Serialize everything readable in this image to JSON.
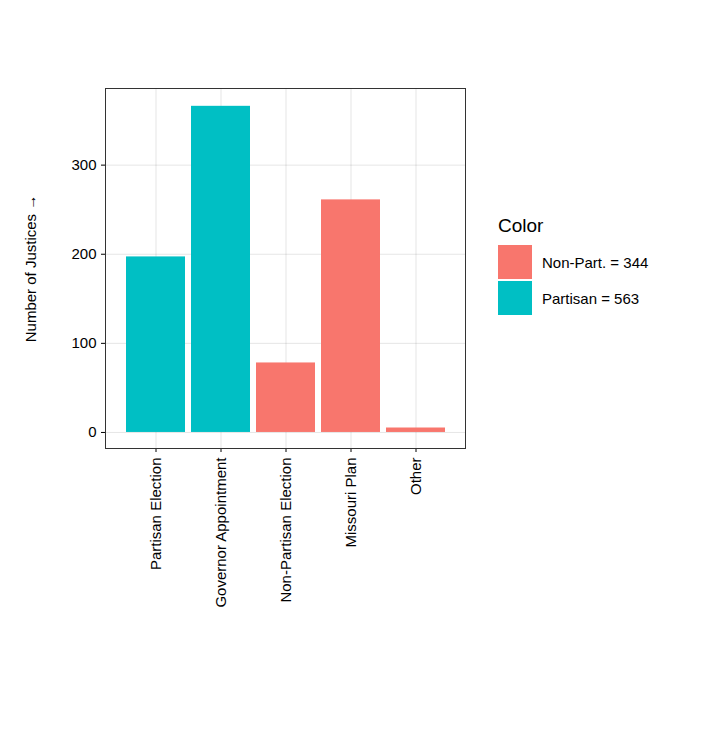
{
  "chart_data": {
    "type": "bar",
    "categories": [
      "Partisan Election",
      "Governor Appointment",
      "Non-Partisan Election",
      "Missouri Plan",
      "Other"
    ],
    "series": [
      {
        "name": "Non-Part. = 344",
        "color": "#F8766D",
        "values": [
          null,
          null,
          78,
          261,
          5
        ]
      },
      {
        "name": "Partisan = 563",
        "color": "#00BFC4",
        "values": [
          197,
          366,
          null,
          null,
          null
        ]
      }
    ],
    "y_label": "Number of Justices",
    "legend_title": "Color",
    "legend": "right",
    "ylim": [
      -18,
      386
    ],
    "yticks": [
      0,
      100,
      200,
      300
    ],
    "grid": true
  }
}
